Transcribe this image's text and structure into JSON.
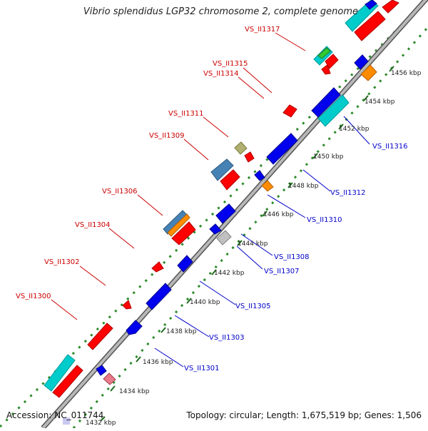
{
  "title": "Vibrio splendidus LGP32 chromosome 2, complete genome",
  "footer": {
    "accession": "Accession: NC_011744",
    "topology": "Topology: circular; Length: 1,675,519 bp; Genes: 1,506"
  },
  "colors": {
    "backbone": "#8a8a8a",
    "dotted_ring": "#2a8a2a",
    "tick": "#1f6b1f",
    "label_top_strand": "#cc0000",
    "label_bottom_strand": "#0000cc"
  },
  "ticks": [
    {
      "label": "1432 kbp"
    },
    {
      "label": "1434 kbp"
    },
    {
      "label": "1436 kbp"
    },
    {
      "label": "1438 kbp"
    },
    {
      "label": "1440 kbp"
    },
    {
      "label": "1442 kbp"
    },
    {
      "label": "1444 kbp"
    },
    {
      "label": "1446 kbp"
    },
    {
      "label": "1448 kbp"
    },
    {
      "label": "1450 kbp"
    },
    {
      "label": "1452 kbp"
    },
    {
      "label": "1454 kbp"
    },
    {
      "label": "1456 kbp"
    }
  ],
  "gene_labels_top": [
    {
      "label": "VS_II1317"
    },
    {
      "label": "VS_II1315"
    },
    {
      "label": "VS_II1314"
    },
    {
      "label": "VS_II1311"
    },
    {
      "label": "VS_II1309"
    },
    {
      "label": "VS_II1306"
    },
    {
      "label": "VS_II1304"
    },
    {
      "label": "VS_II1302"
    },
    {
      "label": "VS_II1300"
    }
  ],
  "gene_labels_bottom": [
    {
      "label": "VS_II1316"
    },
    {
      "label": "VS_II1312"
    },
    {
      "label": "VS_II1310"
    },
    {
      "label": "VS_II1308"
    },
    {
      "label": "VS_II1307"
    },
    {
      "label": "VS_II1305"
    },
    {
      "label": "VS_II1303"
    },
    {
      "label": "VS_II1301"
    }
  ],
  "features": [
    {
      "color": "#00cccc"
    },
    {
      "color": "#ff0000"
    },
    {
      "color": "#0000ee"
    },
    {
      "color": "#4682b4"
    },
    {
      "color": "#ff8c00"
    },
    {
      "color": "#b0b070"
    },
    {
      "color": "#c0c0c0"
    },
    {
      "color": "#e87a8a"
    },
    {
      "color": "#32c832"
    }
  ]
}
